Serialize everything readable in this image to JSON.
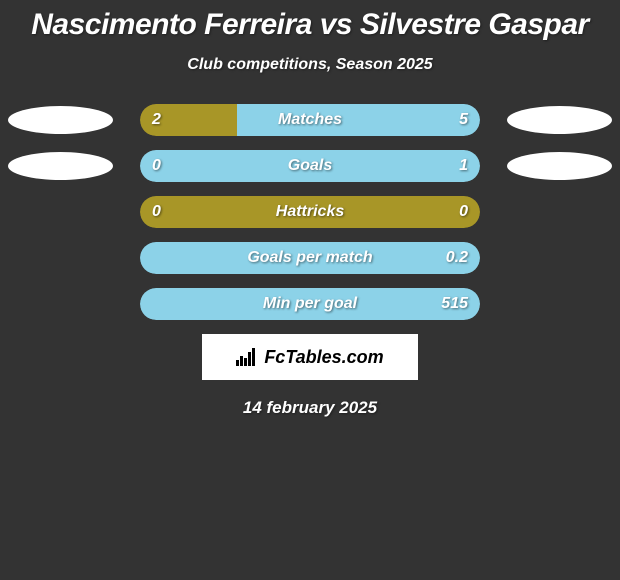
{
  "title": "Nascimento Ferreira vs Silvestre Gaspar",
  "subtitle": "Club competitions, Season 2025",
  "date": "14 february 2025",
  "logo_text": "FcTables.com",
  "colors": {
    "left": "#a89627",
    "right": "#8cd2e8",
    "background": "#333333",
    "avatar": "#ffffff",
    "logo_bg": "#ffffff"
  },
  "avatars": {
    "left_row0": true,
    "right_row0": true,
    "left_row1": true,
    "right_row1": true
  },
  "metrics": [
    {
      "label": "Matches",
      "left_val": "2",
      "right_val": "5",
      "left_num": 2,
      "right_num": 5,
      "left_pct": 28.6,
      "right_pct": 71.4
    },
    {
      "label": "Goals",
      "left_val": "0",
      "right_val": "1",
      "left_num": 0,
      "right_num": 1,
      "left_pct": 0,
      "right_pct": 100
    },
    {
      "label": "Hattricks",
      "left_val": "0",
      "right_val": "0",
      "left_num": 0,
      "right_num": 0,
      "left_pct": 100,
      "right_pct": 0
    },
    {
      "label": "Goals per match",
      "left_val": "",
      "right_val": "0.2",
      "left_num": 0,
      "right_num": 0.2,
      "left_pct": 0,
      "right_pct": 100
    },
    {
      "label": "Min per goal",
      "left_val": "",
      "right_val": "515",
      "left_num": 0,
      "right_num": 515,
      "left_pct": 0,
      "right_pct": 100
    }
  ]
}
